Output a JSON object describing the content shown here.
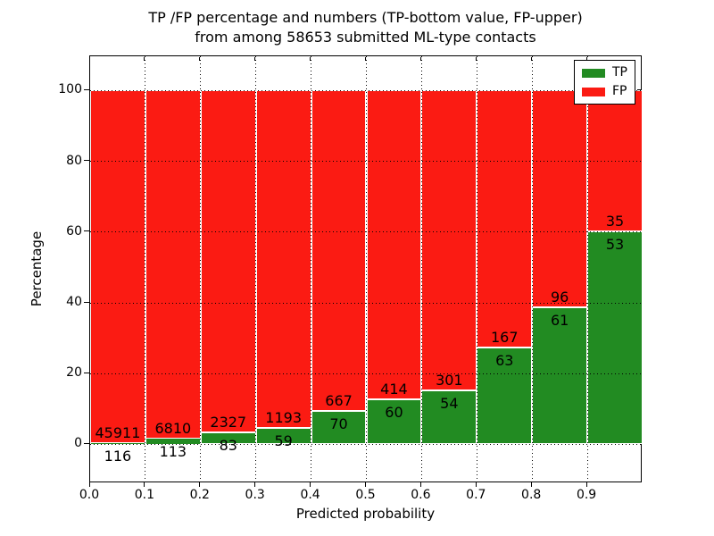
{
  "title": {
    "line1": "TP /FP percentage and numbers (TP-bottom value, FP-upper)",
    "line2": "from among 58653 submitted ML-type contacts"
  },
  "chart_data": {
    "type": "bar",
    "stacked": true,
    "bar_height_mode": "percent_of_bin_total",
    "title": "TP /FP percentage and numbers (TP-bottom value, FP-upper) from among 58653 submitted ML-type contacts",
    "xlabel": "Predicted probability",
    "ylabel": "Percentage",
    "total_contacts": 58653,
    "x_bin_start": [
      0.0,
      0.1,
      0.2,
      0.3,
      0.4,
      0.5,
      0.6,
      0.7,
      0.8,
      0.9
    ],
    "bin_width": 0.1,
    "series": [
      {
        "name": "TP",
        "color": "#228b22",
        "counts": [
          116,
          113,
          83,
          59,
          70,
          60,
          54,
          63,
          61,
          53
        ]
      },
      {
        "name": "FP",
        "color": "#fb1b13",
        "counts": [
          45911,
          6810,
          2327,
          1193,
          667,
          414,
          301,
          167,
          96,
          35
        ]
      }
    ],
    "tp_percent_by_bin": [
      0.25,
      1.63,
      3.44,
      4.71,
      9.5,
      12.66,
      15.21,
      27.39,
      38.85,
      60.23
    ],
    "xticks": [
      "0.0",
      "0.1",
      "0.2",
      "0.3",
      "0.4",
      "0.5",
      "0.6",
      "0.7",
      "0.8",
      "0.9"
    ],
    "yticks": [
      0,
      20,
      40,
      60,
      80,
      100
    ],
    "xlim": [
      0,
      1.0
    ],
    "ylim": [
      -11,
      109.7
    ],
    "grid": {
      "style": "dotted",
      "color": "#000000"
    },
    "legend": {
      "position": "upper-right",
      "entries": [
        {
          "label": "TP",
          "color": "#228b22"
        },
        {
          "label": "FP",
          "color": "#fb1b13"
        }
      ]
    }
  }
}
